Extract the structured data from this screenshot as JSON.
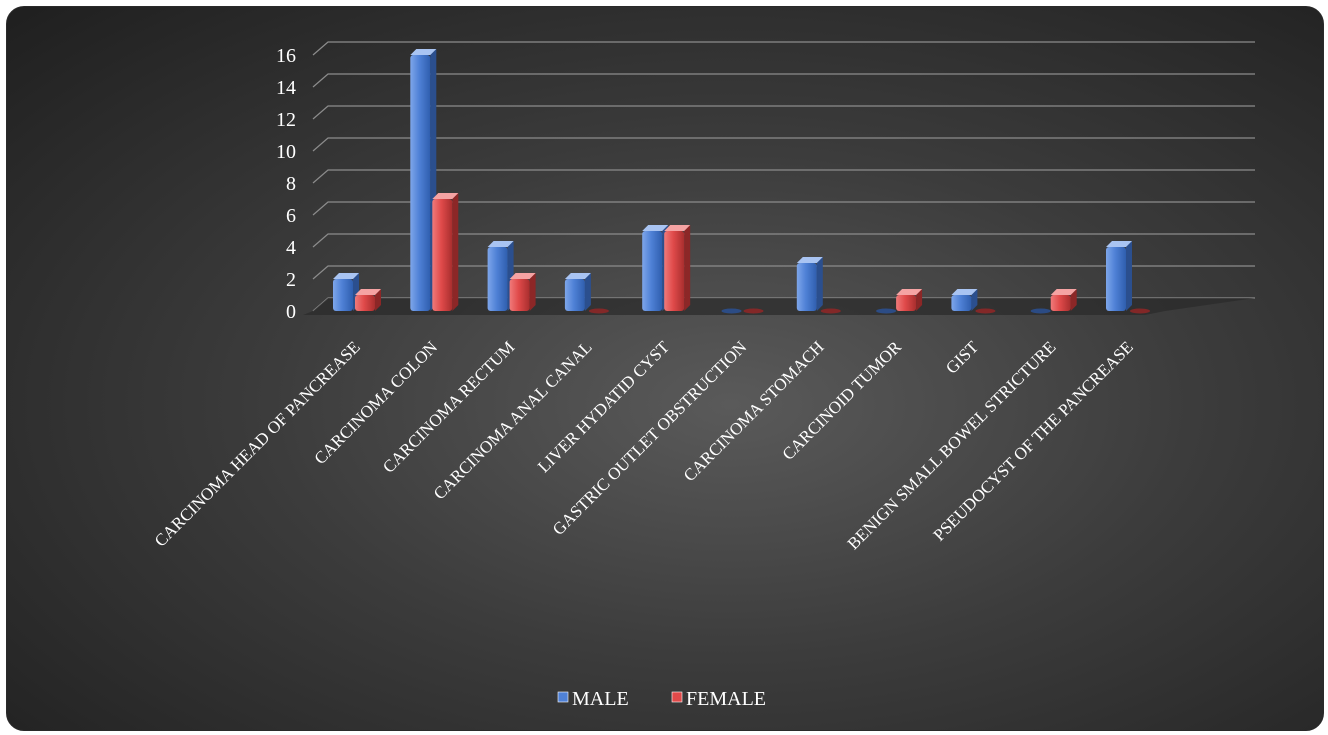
{
  "chart_data": {
    "type": "bar",
    "categories": [
      "CARCINOMA HEAD OF PANCREASE",
      "CARCINOMA COLON",
      "CARCINOMA RECTUM",
      "CARCINOMA ANAL CANAL",
      "LIVER HYDATID CYST",
      "GASTRIC OUTLET OBSTRUCTION",
      "CARCINOMA STOMACH",
      "CARCINOID TUMOR",
      "GIST",
      "BENIGN SMALL BOWEL STRICTURE",
      "PSEUDOCYST OF THE PANCREASE"
    ],
    "series": [
      {
        "name": "MALE",
        "values": [
          2,
          16,
          4,
          2,
          5,
          0,
          3,
          0,
          1,
          0,
          4
        ],
        "color": "#4f81d6"
      },
      {
        "name": "FEMALE",
        "values": [
          1,
          7,
          2,
          0,
          5,
          0,
          0,
          1,
          0,
          1,
          0
        ],
        "color": "#e04a4a"
      }
    ],
    "yticks": [
      "0",
      "2",
      "4",
      "6",
      "8",
      "10",
      "12",
      "14",
      "16"
    ],
    "ylim": [
      0,
      16
    ],
    "grid": true,
    "legend_position": "bottom"
  }
}
